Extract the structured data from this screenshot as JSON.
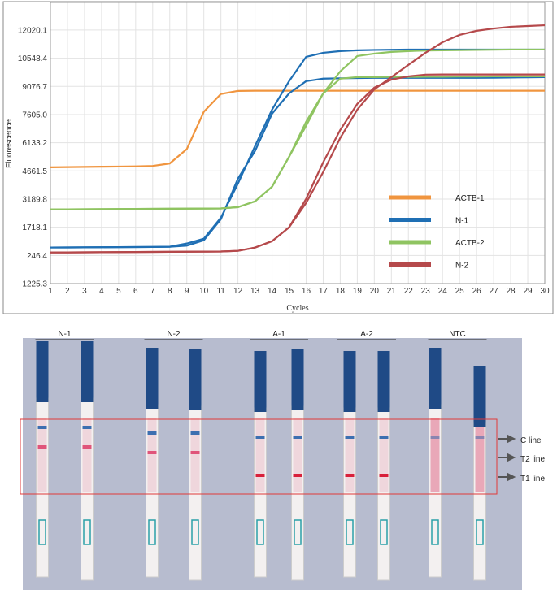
{
  "chart_data": {
    "type": "line",
    "ylabel": "Fluorescence",
    "xlabel": "Cycles",
    "x": [
      1,
      2,
      3,
      4,
      5,
      6,
      7,
      8,
      9,
      10,
      11,
      12,
      13,
      14,
      15,
      16,
      17,
      18,
      19,
      20,
      21,
      22,
      23,
      24,
      25,
      26,
      27,
      28,
      29,
      30
    ],
    "xlim": [
      1,
      30
    ],
    "xticks": [
      1,
      2,
      3,
      4,
      5,
      6,
      7,
      8,
      9,
      10,
      11,
      12,
      13,
      14,
      15,
      16,
      17,
      18,
      19,
      20,
      21,
      22,
      23,
      24,
      25,
      26,
      27,
      28,
      29,
      30
    ],
    "ylim": [
      -1225.3,
      13460
    ],
    "yticks": [
      -1225.3,
      246.4,
      1718.1,
      3189.8,
      4661.5,
      6133.2,
      {
        "value": 7605.0,
        "label": "7605.0"
      },
      9076.7,
      10548.4,
      12020.1
    ],
    "grid": true,
    "legend": "lower right",
    "series": [
      {
        "name": "ACTB-1",
        "color": "#f0953f",
        "runs": [
          [
            4850,
            4860,
            4870,
            4880,
            4890,
            4900,
            4920,
            5050,
            5800,
            7750,
            8680,
            8840,
            8850,
            8850,
            8850,
            8850,
            8850,
            8850,
            8850,
            8850,
            8850,
            8850,
            8850,
            8850,
            8850,
            8850,
            8850,
            8850,
            8850,
            8850
          ]
        ]
      },
      {
        "name": "N-1",
        "color": "#1f6fb4",
        "runs": [
          [
            660,
            665,
            670,
            675,
            680,
            685,
            690,
            700,
            870,
            1120,
            2220,
            4000,
            5955,
            7860,
            9350,
            10620,
            10830,
            10920,
            10960,
            10980,
            10990,
            11000,
            11000,
            11000,
            11000,
            11000,
            11000,
            11000,
            11000,
            11000
          ],
          [
            660,
            665,
            670,
            675,
            680,
            685,
            690,
            700,
            760,
            1040,
            2140,
            4260,
            5700,
            7650,
            8710,
            9350,
            9480,
            9500,
            9510,
            9520,
            9520,
            9520,
            9520,
            9520,
            9520,
            9520,
            9530,
            9540,
            9550,
            9560
          ]
        ]
      },
      {
        "name": "ACTB-2",
        "color": "#8fc461",
        "runs": [
          [
            2650,
            2655,
            2660,
            2665,
            2670,
            2675,
            2680,
            2685,
            2690,
            2695,
            2700,
            2770,
            3070,
            3835,
            5400,
            7230,
            8710,
            9860,
            10660,
            10790,
            10875,
            10920,
            10950,
            10960,
            10970,
            10980,
            10990,
            11000,
            11000,
            11000
          ],
          [
            2650,
            2655,
            2660,
            2665,
            2670,
            2675,
            2680,
            2685,
            2690,
            2695,
            2700,
            2770,
            3070,
            3835,
            5400,
            7020,
            8710,
            9480,
            9560,
            9560,
            9570,
            9570,
            9580,
            9580,
            9590,
            9590,
            9600,
            9600,
            9600,
            9600
          ]
        ]
      },
      {
        "name": "N-2",
        "color": "#b5494b",
        "runs": [
          [
            400,
            405,
            410,
            415,
            420,
            425,
            430,
            435,
            440,
            445,
            450,
            485,
            655,
            990,
            1715,
            2990,
            4600,
            6380,
            7860,
            8920,
            9560,
            10200,
            10830,
            11380,
            11765,
            11980,
            12100,
            12190,
            12230,
            12270
          ],
          [
            400,
            405,
            410,
            415,
            420,
            425,
            430,
            435,
            440,
            445,
            450,
            485,
            655,
            990,
            1715,
            3200,
            5110,
            6800,
            8160,
            9010,
            9430,
            9600,
            9690,
            9700,
            9700,
            9700,
            9700,
            9700,
            9700,
            9700
          ]
        ]
      }
    ]
  },
  "strip_panel": {
    "groups": [
      "N-1",
      "N-2",
      "A-1",
      "A-2",
      "NTC"
    ],
    "line_labels": [
      "C line",
      "T2 line",
      "T1 line"
    ]
  }
}
